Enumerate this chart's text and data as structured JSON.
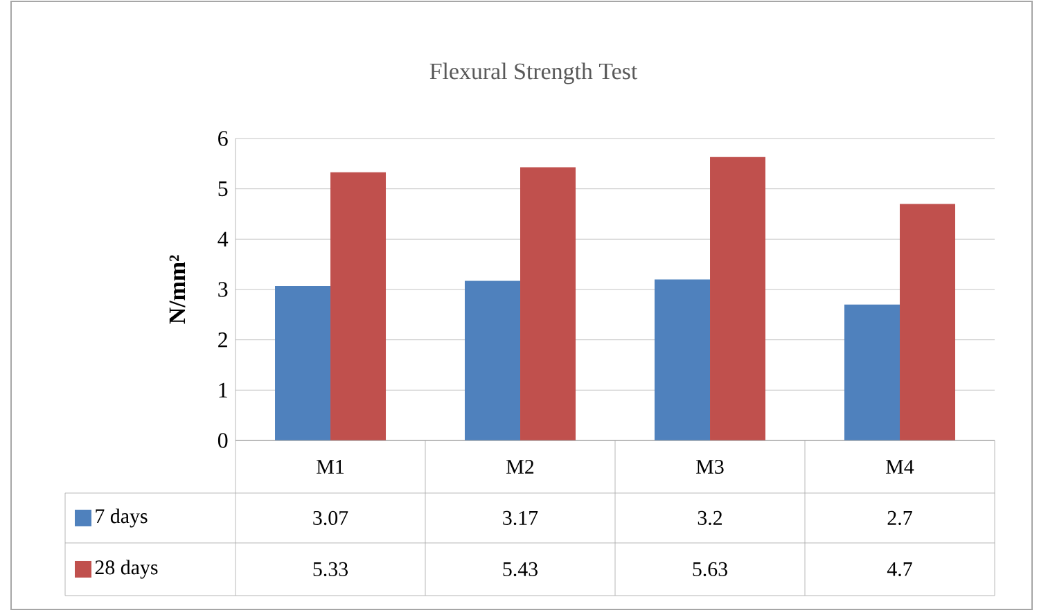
{
  "chart_data": {
    "type": "bar",
    "title": "Flexural Strength Test",
    "ylabel": "N/mm²",
    "categories": [
      "M1",
      "M2",
      "M3",
      "M4"
    ],
    "series": [
      {
        "name": "7 days",
        "color": "#4f81bd",
        "values": [
          3.07,
          3.17,
          3.2,
          2.7
        ]
      },
      {
        "name": "28 days",
        "color": "#c0504d",
        "values": [
          5.33,
          5.43,
          5.63,
          4.7
        ]
      }
    ],
    "ylim": [
      0,
      6
    ],
    "yticks": [
      0,
      1,
      2,
      3,
      4,
      5,
      6
    ],
    "grid": "y",
    "data_labels": true,
    "legend": "bottom"
  }
}
